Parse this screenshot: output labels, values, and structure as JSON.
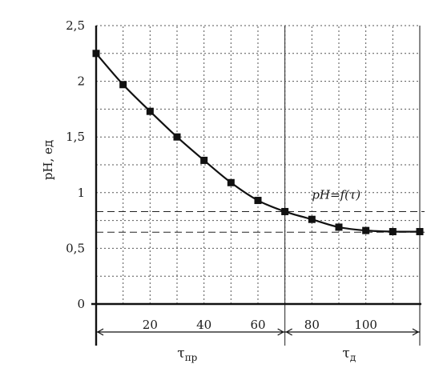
{
  "chart_data": {
    "type": "line",
    "title": "",
    "xlabel": "",
    "ylabel": "pH, ед",
    "xlim": [
      0,
      120
    ],
    "ylim": [
      0,
      2.5
    ],
    "x_ticks": [
      20,
      40,
      60,
      80,
      100
    ],
    "x_tick_labels": [
      "20",
      "40",
      "60",
      "80",
      "100"
    ],
    "y_ticks": [
      0,
      0.5,
      1,
      1.5,
      2,
      2.5
    ],
    "y_tick_labels": [
      "0",
      "0,5",
      "1",
      "1,5",
      "2",
      "2,5"
    ],
    "grid": true,
    "grid_x_step": 10,
    "grid_y_step": 0.25,
    "series": [
      {
        "x": [
          0,
          10,
          20,
          30,
          40,
          50,
          60,
          70,
          80,
          90,
          100,
          110,
          120
        ],
        "y": [
          2.25,
          1.97,
          1.73,
          1.5,
          1.29,
          1.09,
          0.93,
          0.83,
          0.76,
          0.69,
          0.66,
          0.65,
          0.65
        ]
      }
    ],
    "annotation": {
      "text": "pH=f(τ)",
      "x": 80,
      "y": 0.98
    },
    "reference_lines": {
      "x": 70,
      "y": [
        0.83,
        0.645
      ]
    },
    "intervals": [
      {
        "from": 0,
        "to": 70,
        "label": "τ",
        "sub": "пр"
      },
      {
        "from": 70,
        "to": 120,
        "label": "τ",
        "sub": "д"
      }
    ],
    "colors": {
      "line": "#111111",
      "grid": "#555555",
      "axis": "#111111"
    }
  }
}
